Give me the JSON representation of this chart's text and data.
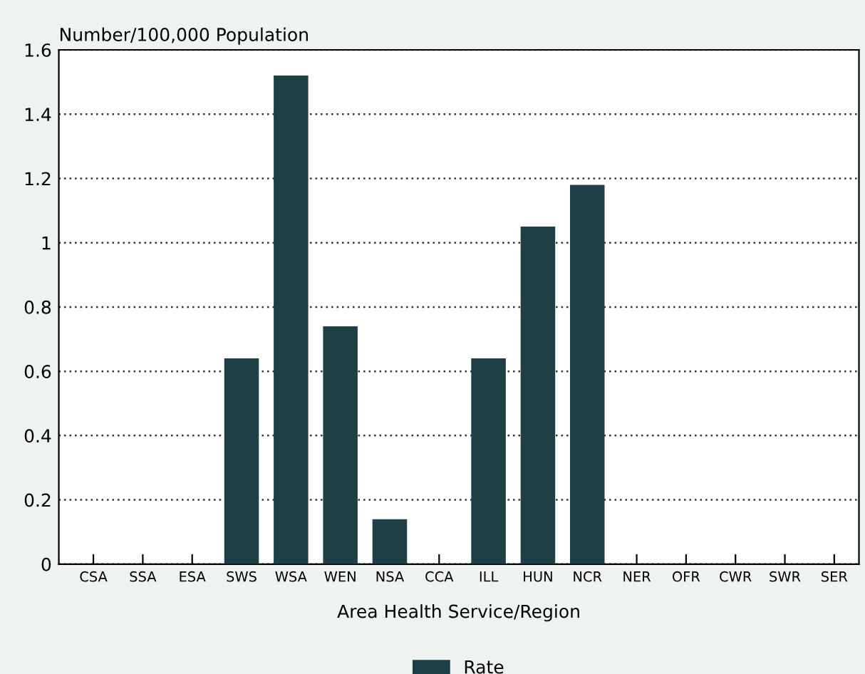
{
  "chart_data": {
    "type": "bar",
    "ylabel": "Number/100,000 Population",
    "xlabel": "Area Health Service/Region",
    "categories": [
      "CSA",
      "SSA",
      "ESA",
      "SWS",
      "WSA",
      "WEN",
      "NSA",
      "CCA",
      "ILL",
      "HUN",
      "NCR",
      "NER",
      "OFR",
      "CWR",
      "SWR",
      "SER"
    ],
    "series": [
      {
        "name": "Rate",
        "color": "#1e3f45",
        "values": [
          0,
          0,
          0,
          0.64,
          1.52,
          0.74,
          0.14,
          0,
          0.64,
          1.05,
          1.18,
          0,
          0,
          0,
          0,
          0
        ]
      }
    ],
    "ylim": [
      0,
      1.6
    ],
    "yticks": [
      0,
      0.2,
      0.4,
      0.6,
      0.8,
      1,
      1.2,
      1.4,
      1.6
    ],
    "grid": "y",
    "legend": "bottom"
  }
}
